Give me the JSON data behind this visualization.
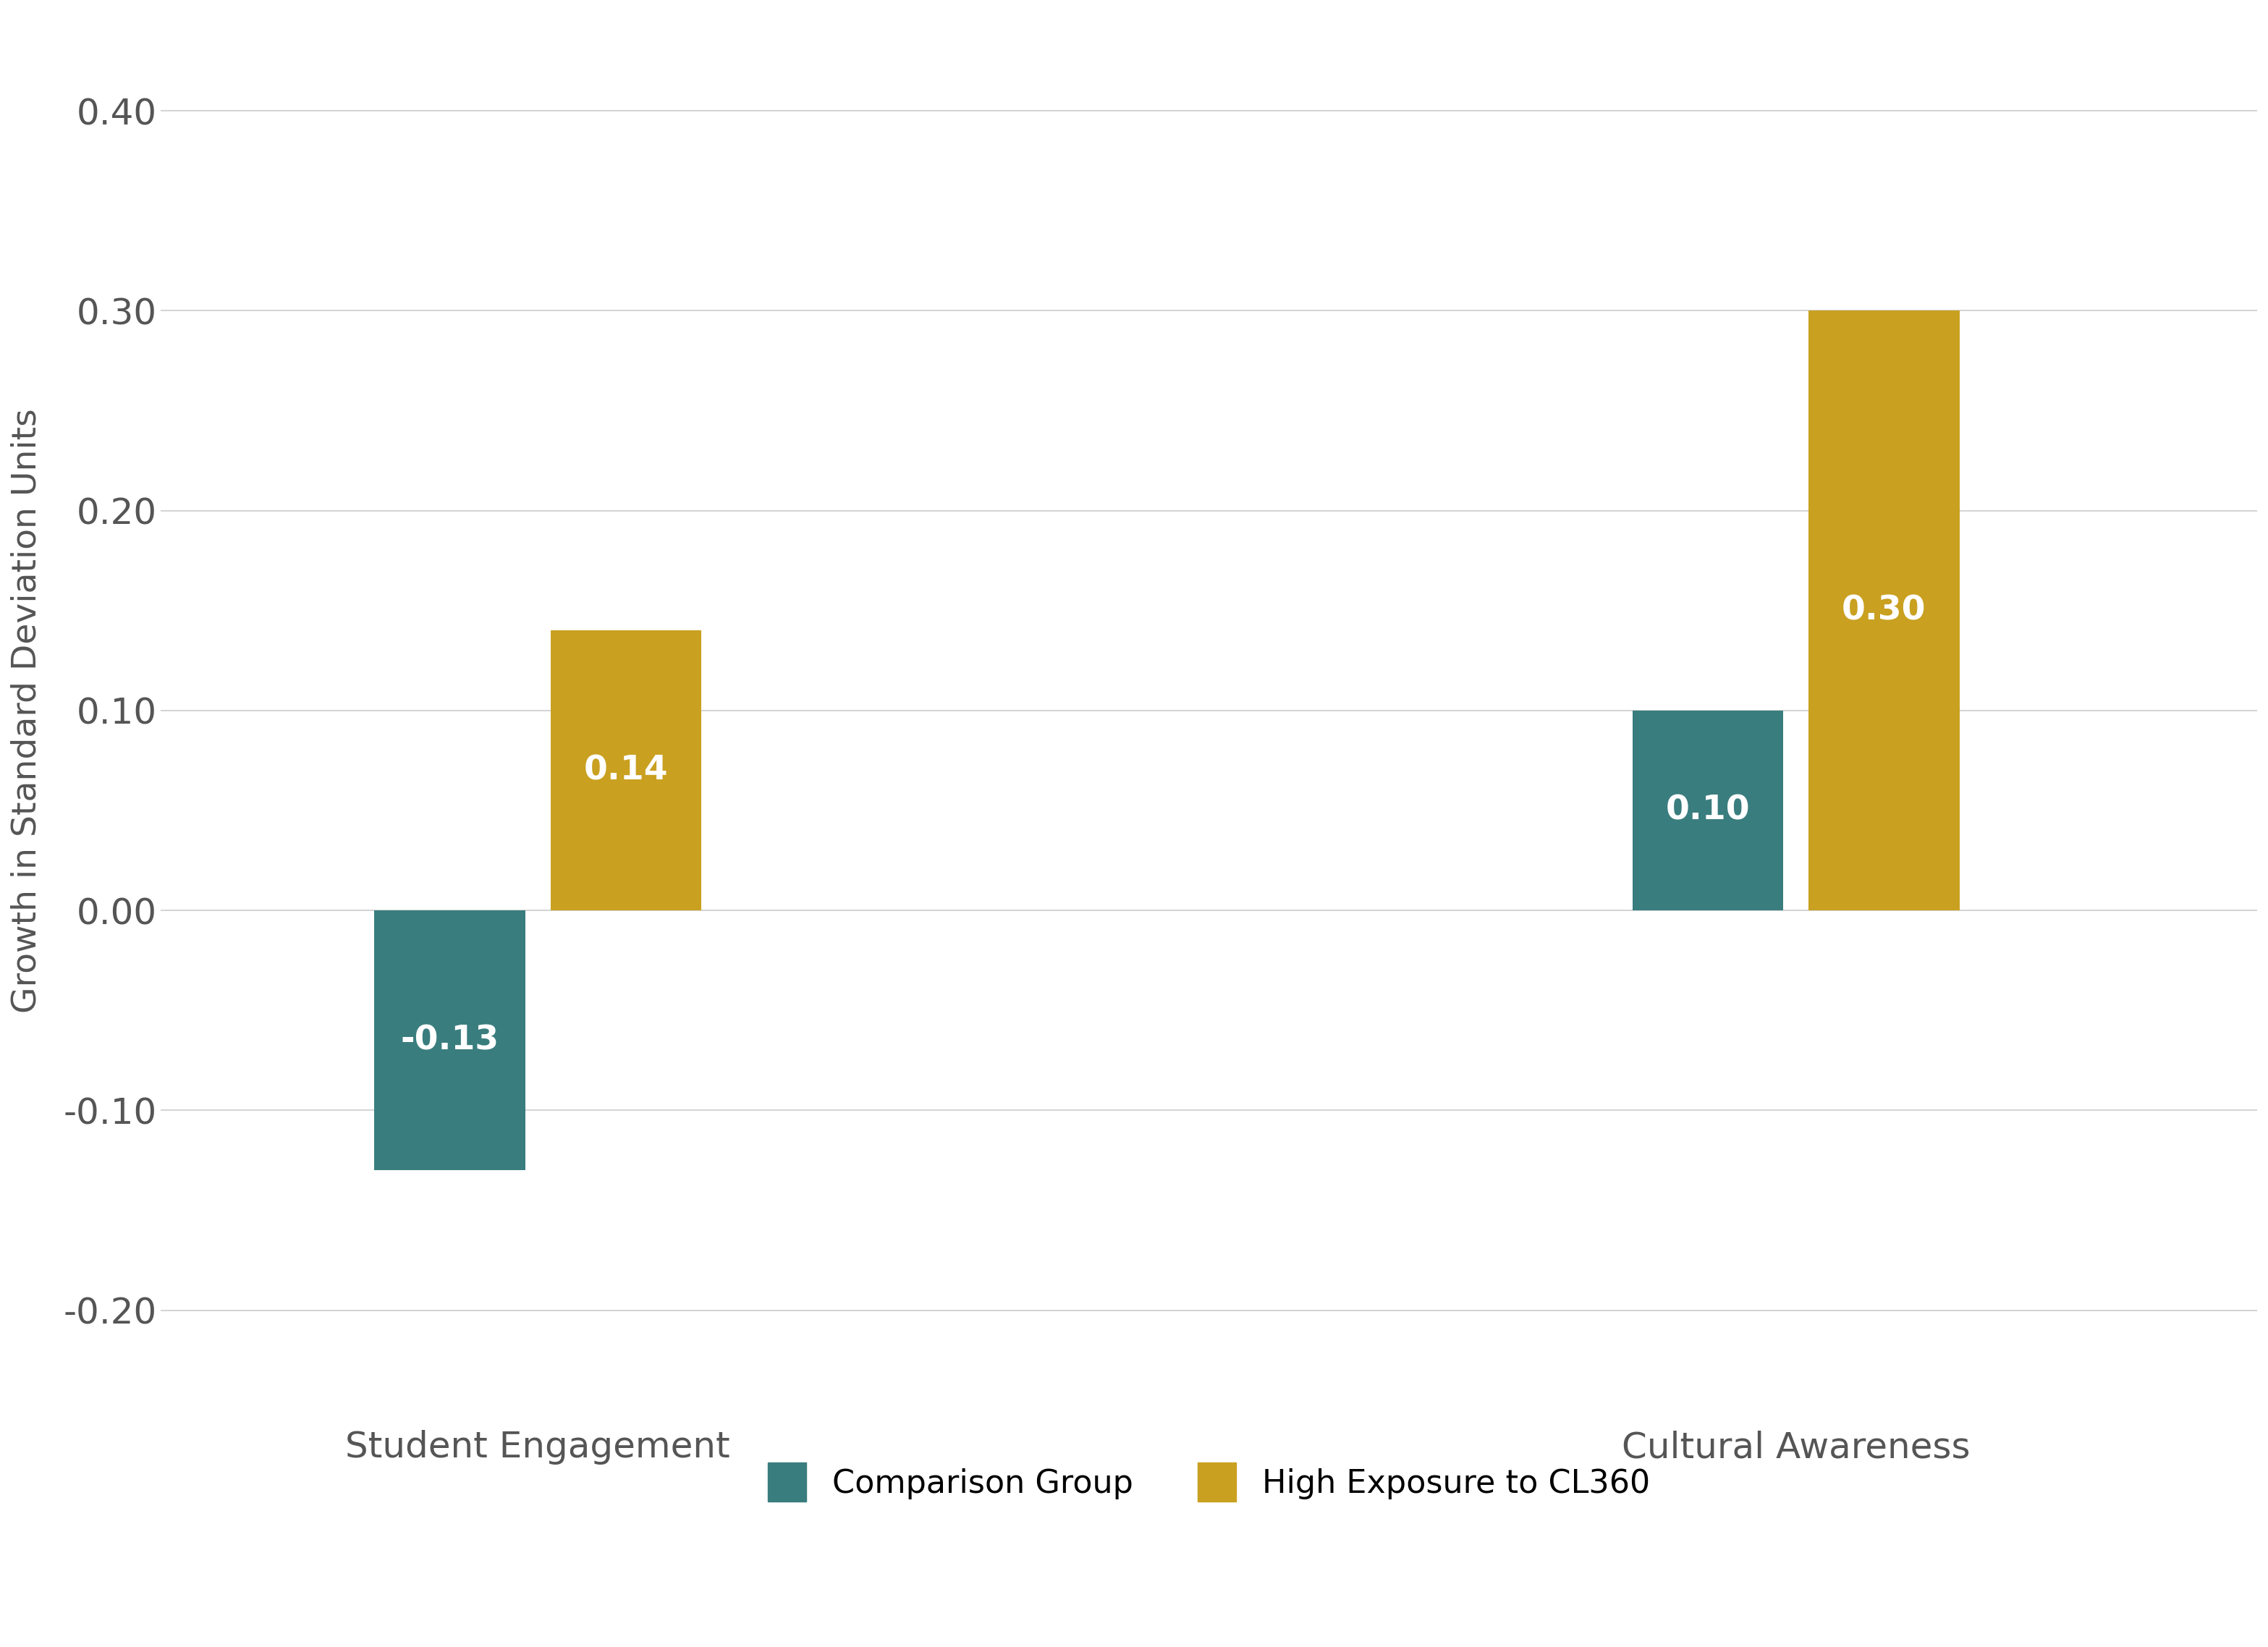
{
  "categories": [
    "Student Engagement",
    "Cultural Awareness"
  ],
  "comparison_values": [
    -0.13,
    0.1
  ],
  "high_exposure_values": [
    0.14,
    0.3
  ],
  "comparison_color": "#3a7d7e",
  "high_exposure_color": "#c9a020",
  "ylabel": "Growth in Standard Deviation Units",
  "ylim": [
    -0.25,
    0.45
  ],
  "yticks": [
    -0.2,
    -0.1,
    0.0,
    0.1,
    0.2,
    0.3,
    0.4
  ],
  "ytick_labels": [
    "-0.20",
    "-0.10",
    "0.00",
    "0.10",
    "0.20",
    "0.30",
    "0.40"
  ],
  "legend_comparison": "Comparison Group",
  "legend_high_exposure": "High Exposure to CL360",
  "bar_width": 0.18,
  "bar_gap": 0.03,
  "group_centers": [
    1.0,
    2.5
  ],
  "xlim": [
    0.55,
    3.05
  ],
  "background_color": "#ffffff",
  "grid_color": "#cccccc",
  "tick_fontsize": 36,
  "bar_label_fontsize": 34,
  "legend_fontsize": 32,
  "ylabel_fontsize": 34,
  "xlabel_fontsize": 36
}
